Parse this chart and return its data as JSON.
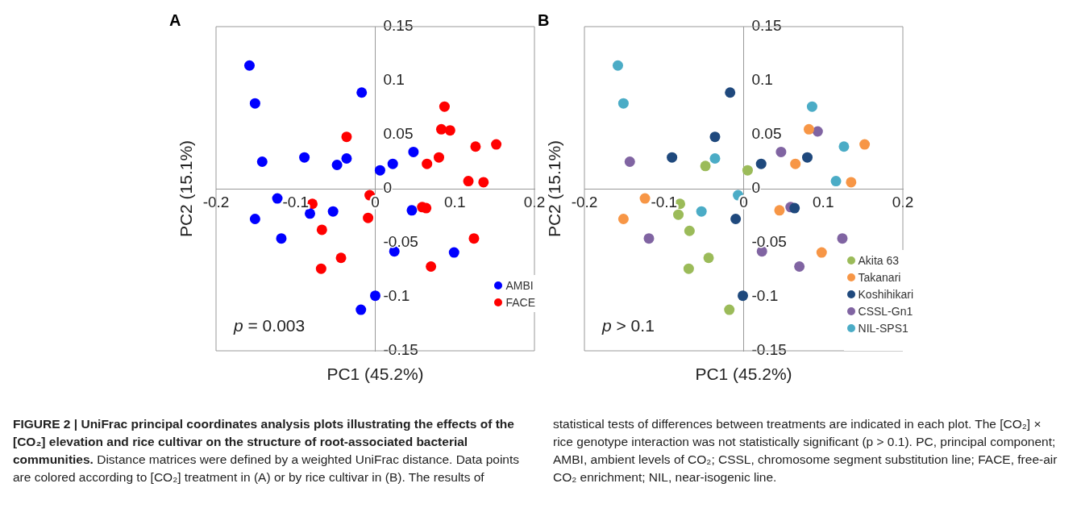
{
  "chart_data": [
    {
      "type": "scatter",
      "title": "A",
      "xlabel": "PC1 (45.2%)",
      "ylabel": "PC2 (15.1%)",
      "xlim": [
        -0.2,
        0.2
      ],
      "ylim": [
        -0.15,
        0.15
      ],
      "xticks": [
        -0.2,
        -0.1,
        0,
        0.1,
        0.2
      ],
      "yticks": [
        -0.15,
        -0.1,
        -0.05,
        0,
        0.05,
        0.1,
        0.15
      ],
      "grid": false,
      "legend": "bottom right",
      "marker": "circle",
      "series": [
        {
          "name": "AMBI",
          "color": "#0000ff",
          "x": [
            -0.158,
            -0.151,
            -0.142,
            -0.089,
            -0.048,
            -0.036,
            -0.017,
            0.006,
            0.022,
            0.048,
            -0.123,
            -0.151,
            -0.082,
            -0.053,
            -0.118,
            0.046,
            0.024,
            0.099,
            0.0,
            -0.018
          ],
          "values": [
            0.114,
            0.079,
            0.025,
            0.029,
            0.022,
            0.028,
            0.089,
            0.017,
            0.023,
            0.034,
            -0.009,
            -0.028,
            -0.023,
            -0.021,
            -0.046,
            -0.02,
            -0.058,
            -0.059,
            -0.099,
            -0.112
          ]
        },
        {
          "name": "FACE",
          "color": "#ff0000",
          "x": [
            0.087,
            0.083,
            0.094,
            0.126,
            0.152,
            0.065,
            0.08,
            0.117,
            0.136,
            -0.036,
            -0.007,
            -0.079,
            -0.009,
            -0.067,
            -0.043,
            -0.068,
            0.059,
            0.064,
            0.07,
            0.124
          ],
          "values": [
            0.076,
            0.055,
            0.054,
            0.039,
            0.041,
            0.023,
            0.029,
            0.007,
            0.006,
            0.048,
            -0.006,
            -0.014,
            -0.027,
            -0.038,
            -0.064,
            -0.074,
            -0.017,
            -0.018,
            -0.072,
            -0.046
          ]
        }
      ],
      "annotations": [
        "p = 0.003",
        "FIGURE 2 | UniFrac principal coordinates analysis plots illustrating the effects of the [CO₂] elevation and rice cultivar on the structure of root-associated bacterial communities.",
        "Distance matrices were defined by a weighted UniFrac distance. Data points are colored according to [CO₂] treatment in (A) or by rice cultivar in (B). The results of statistical tests of differences between treatments are indicated in each plot. The [CO₂] × rice genotype interaction was not statistically significant (p > 0.1). PC, principal component; AMBI, ambient levels of CO₂; CSSL, chromosome segment substitution line; FACE, free-air CO₂ enrichment; NIL, near-isogenic line."
      ]
    },
    {
      "type": "scatter",
      "title": "B",
      "xlabel": "PC1 (45.2%)",
      "ylabel": "PC2 (15.1%)",
      "xlim": [
        -0.2,
        0.2
      ],
      "ylim": [
        -0.15,
        0.15
      ],
      "xticks": [
        -0.2,
        -0.1,
        0,
        0.1,
        0.2
      ],
      "yticks": [
        -0.15,
        -0.1,
        -0.05,
        0,
        0.05,
        0.1,
        0.15
      ],
      "grid": false,
      "legend": "bottom right",
      "marker": "circle",
      "series": [
        {
          "name": "Akita 63",
          "color": "#9bbb59",
          "x": [
            -0.048,
            0.005,
            -0.08,
            -0.082,
            -0.068,
            -0.044,
            -0.069,
            -0.018
          ],
          "values": [
            0.021,
            0.017,
            -0.014,
            -0.024,
            -0.039,
            -0.064,
            -0.074,
            -0.112
          ]
        },
        {
          "name": "Takanari",
          "color": "#f79646",
          "x": [
            0.082,
            0.152,
            0.065,
            0.135,
            -0.124,
            -0.151,
            0.045,
            0.098
          ],
          "values": [
            0.055,
            0.041,
            0.023,
            0.006,
            -0.009,
            -0.028,
            -0.02,
            -0.059
          ]
        },
        {
          "name": "Koshihikari",
          "color": "#1f497d",
          "x": [
            -0.017,
            -0.036,
            -0.09,
            0.022,
            0.08,
            -0.01,
            0.064,
            -0.001
          ],
          "values": [
            0.089,
            0.048,
            0.029,
            0.023,
            0.029,
            -0.028,
            -0.018,
            -0.099
          ]
        },
        {
          "name": "CSSL-Gn1",
          "color": "#8064a2",
          "x": [
            -0.143,
            0.047,
            0.093,
            0.059,
            -0.119,
            0.023,
            0.07,
            0.124
          ],
          "values": [
            0.025,
            0.034,
            0.053,
            -0.017,
            -0.046,
            -0.058,
            -0.072,
            -0.046
          ]
        },
        {
          "name": "NIL-SPS1",
          "color": "#4bacc6",
          "x": [
            -0.158,
            -0.151,
            -0.036,
            0.086,
            0.126,
            0.116,
            -0.007,
            -0.053
          ],
          "values": [
            0.114,
            0.079,
            0.028,
            0.076,
            0.039,
            0.007,
            -0.006,
            -0.021
          ]
        }
      ],
      "annotations": [
        "p > 0.1"
      ]
    }
  ]
}
